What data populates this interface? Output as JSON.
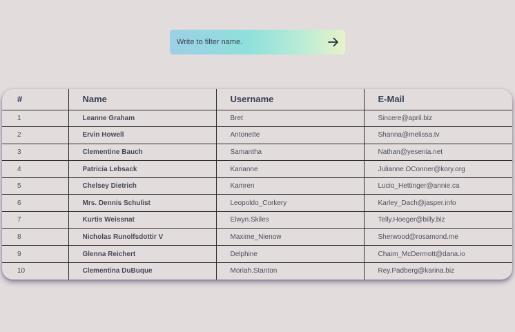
{
  "filter": {
    "placeholder": "Write to filter name.",
    "icon": "arrow-right-icon"
  },
  "table": {
    "headers": [
      "#",
      "Name",
      "Username",
      "E-Mail"
    ],
    "rows": [
      {
        "id": "1",
        "name": "Leanne Graham",
        "username": "Bret",
        "email": "Sincere@april.biz"
      },
      {
        "id": "2",
        "name": "Ervin Howell",
        "username": "Antonette",
        "email": "Shanna@melissa.tv"
      },
      {
        "id": "3",
        "name": "Clementine Bauch",
        "username": "Samantha",
        "email": "Nathan@yesenia.net"
      },
      {
        "id": "4",
        "name": "Patricia Lebsack",
        "username": "Karianne",
        "email": "Julianne.OConner@kory.org"
      },
      {
        "id": "5",
        "name": "Chelsey Dietrich",
        "username": "Kamren",
        "email": "Lucio_Hettinger@annie.ca"
      },
      {
        "id": "6",
        "name": "Mrs. Dennis Schulist",
        "username": "Leopoldo_Corkery",
        "email": "Karley_Dach@jasper.info"
      },
      {
        "id": "7",
        "name": "Kurtis Weissnat",
        "username": "Elwyn.Skiles",
        "email": "Telly.Hoeger@billy.biz"
      },
      {
        "id": "8",
        "name": "Nicholas Runolfsdottir V",
        "username": "Maxime_Nienow",
        "email": "Sherwood@rosamond.me"
      },
      {
        "id": "9",
        "name": "Glenna Reichert",
        "username": "Delphine",
        "email": "Chaim_McDermott@dana.io"
      },
      {
        "id": "10",
        "name": "Clementina DuBuque",
        "username": "Moriah.Stanton",
        "email": "Rey.Padberg@karina.biz"
      }
    ]
  },
  "colors": {
    "background": "#e3dcdc",
    "text": "#3e4457",
    "border": "#2b2b2b"
  }
}
